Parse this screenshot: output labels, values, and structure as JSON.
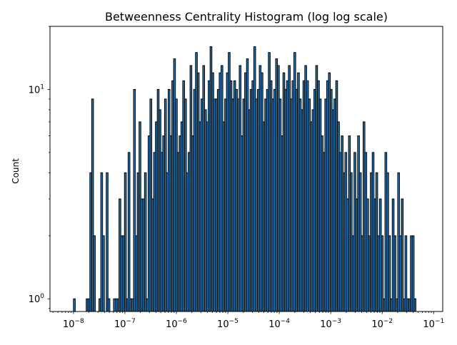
{
  "chart_data": {
    "type": "bar",
    "title": "Betweenness Centrality Histogram (log log scale)",
    "xlabel": "",
    "ylabel": "Count",
    "xscale": "log",
    "yscale": "log",
    "xlim": [
      3.5e-09,
      0.15
    ],
    "ylim": [
      0.87,
      20
    ],
    "x_ticks": [
      {
        "value": 1e-08,
        "exp": "−8"
      },
      {
        "value": 1e-07,
        "exp": "−7"
      },
      {
        "value": 1e-06,
        "exp": "−6"
      },
      {
        "value": 1e-05,
        "exp": "−5"
      },
      {
        "value": 0.0001,
        "exp": "−4"
      },
      {
        "value": 0.001,
        "exp": "−3"
      },
      {
        "value": 0.01,
        "exp": "−2"
      },
      {
        "value": 0.1,
        "exp": "−1"
      }
    ],
    "y_ticks": [
      {
        "value": 1,
        "exp": "0"
      },
      {
        "value": 10,
        "exp": "1"
      }
    ],
    "bar_color": "#1f77b4",
    "edge_color": "#000000",
    "grid": false,
    "bins_log10_start": -8.0,
    "bins_log10_step": 0.0354,
    "counts": [
      1,
      0,
      0,
      0,
      0,
      0,
      0,
      1,
      1,
      4,
      9,
      2,
      0,
      0,
      1,
      4,
      2,
      0,
      4,
      1,
      0,
      0,
      1,
      1,
      1,
      3,
      2,
      2,
      4,
      1,
      5,
      1,
      1,
      10,
      2,
      4,
      7,
      3,
      3,
      4,
      1,
      6,
      9,
      3,
      5,
      7,
      10,
      8,
      5,
      6,
      9,
      4,
      10,
      6,
      11,
      14,
      9,
      5,
      6,
      7,
      11,
      9,
      4,
      5,
      13,
      6,
      10,
      15,
      12,
      7,
      9,
      13,
      8,
      7,
      11,
      16,
      12,
      9,
      9,
      10,
      12,
      13,
      7,
      9,
      12,
      15,
      11,
      9,
      11,
      10,
      9,
      13,
      6,
      9,
      12,
      14,
      8,
      10,
      11,
      16,
      9,
      10,
      13,
      12,
      7,
      9,
      10,
      15,
      11,
      9,
      10,
      14,
      13,
      9,
      6,
      12,
      10,
      11,
      13,
      9,
      11,
      15,
      10,
      12,
      9,
      8,
      11,
      13,
      11,
      9,
      7,
      8,
      10,
      13,
      11,
      9,
      6,
      5,
      9,
      11,
      12,
      10,
      8,
      9,
      11,
      7,
      5,
      6,
      4,
      5,
      3,
      6,
      4,
      2,
      5,
      3,
      6,
      4,
      2,
      7,
      5,
      3,
      2,
      4,
      5,
      3,
      4,
      2,
      3,
      2,
      1,
      5,
      4,
      2,
      1,
      3,
      2,
      1,
      4,
      2,
      3,
      1,
      2,
      1,
      1,
      2,
      2,
      1
    ]
  }
}
